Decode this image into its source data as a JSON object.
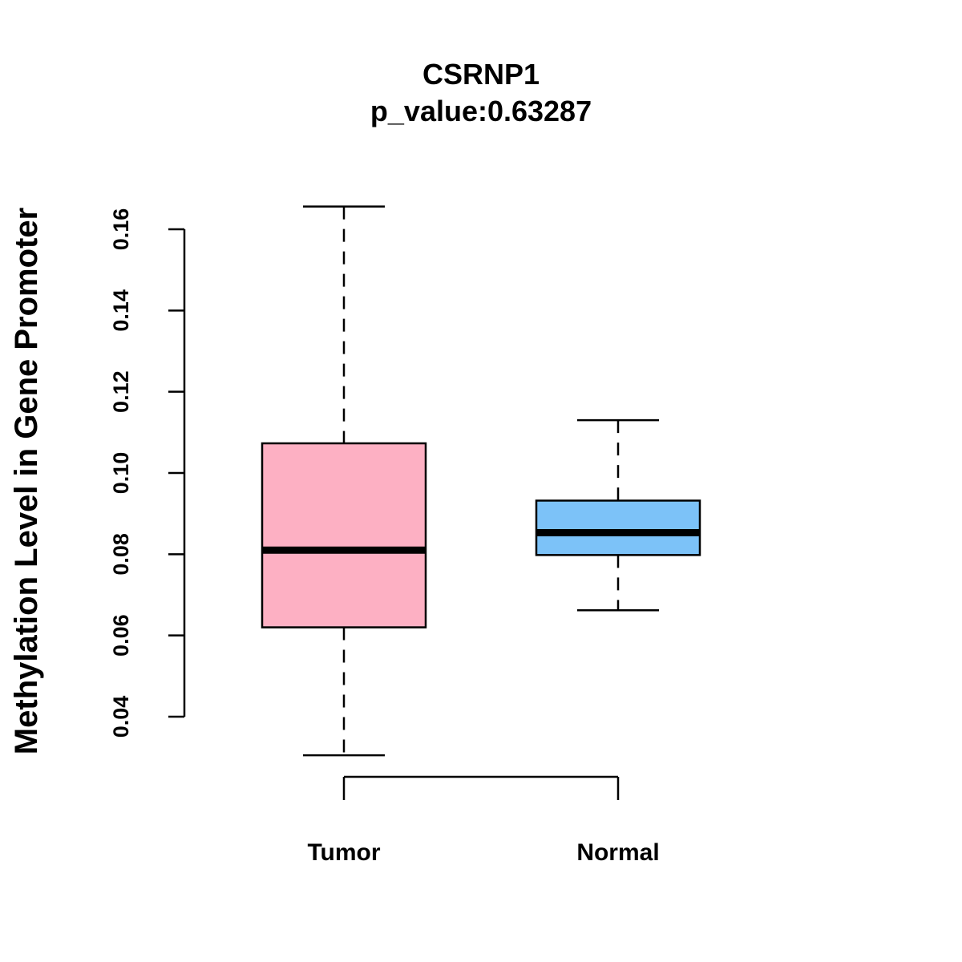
{
  "chart_data": {
    "type": "boxplot",
    "title": "CSRNP1",
    "subtitle": "p_value:0.63287",
    "ylabel": "Methylation Level in Gene Promoter",
    "xlabel": "",
    "ylim": [
      0.04,
      0.16
    ],
    "yticks": [
      0.04,
      0.06,
      0.08,
      0.1,
      0.12,
      0.14,
      0.16
    ],
    "ytick_labels": [
      "0.04",
      "0.06",
      "0.08",
      "0.10",
      "0.12",
      "0.14",
      "0.16"
    ],
    "categories": [
      "Tumor",
      "Normal"
    ],
    "boxes": [
      {
        "category": "Tumor",
        "min": 0.0305,
        "q1": 0.062,
        "median": 0.081,
        "q3": 0.1073,
        "max": 0.1656,
        "color": "#FDB0C3"
      },
      {
        "category": "Normal",
        "min": 0.0662,
        "q1": 0.0798,
        "median": 0.0853,
        "q3": 0.0932,
        "max": 0.113,
        "color": "#7CC2F8"
      }
    ],
    "grid": false,
    "legend": "none"
  }
}
